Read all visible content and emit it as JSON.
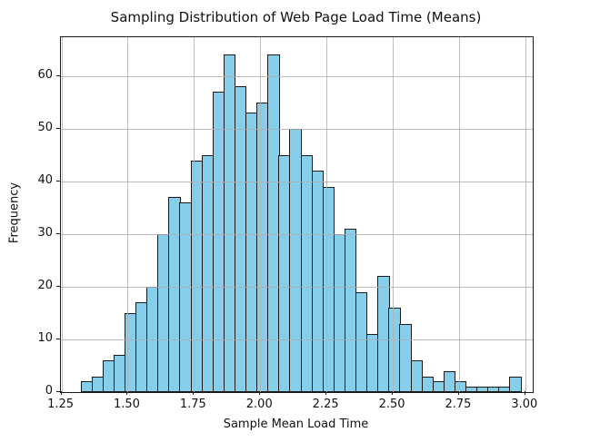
{
  "chart_data": {
    "type": "bar",
    "subtype": "histogram",
    "title": "Sampling Distribution of Web Page Load Time (Means)",
    "xlabel": "Sample Mean Load Time",
    "ylabel": "Frequency",
    "bin_start": 1.322,
    "bin_width": 0.0415,
    "frequencies": [
      2,
      3,
      6,
      7,
      15,
      17,
      20,
      30,
      37,
      36,
      44,
      45,
      57,
      64,
      58,
      53,
      55,
      64,
      45,
      50,
      45,
      42,
      39,
      30,
      31,
      19,
      11,
      22,
      16,
      13,
      6,
      3,
      2,
      4,
      2,
      1,
      1,
      1,
      1,
      3
    ],
    "x_ticks": [
      {
        "value": 1.25,
        "label": "1.25"
      },
      {
        "value": 1.5,
        "label": "1.50"
      },
      {
        "value": 1.75,
        "label": "1.75"
      },
      {
        "value": 2.0,
        "label": "2.00"
      },
      {
        "value": 2.25,
        "label": "2.25"
      },
      {
        "value": 2.5,
        "label": "2.50"
      },
      {
        "value": 2.75,
        "label": "2.75"
      },
      {
        "value": 3.0,
        "label": "3.00"
      }
    ],
    "y_ticks": [
      {
        "value": 0,
        "label": "0"
      },
      {
        "value": 10,
        "label": "10"
      },
      {
        "value": 20,
        "label": "20"
      },
      {
        "value": 30,
        "label": "30"
      },
      {
        "value": 40,
        "label": "40"
      },
      {
        "value": 50,
        "label": "50"
      },
      {
        "value": 60,
        "label": "60"
      }
    ],
    "xlim": [
      1.248,
      3.028
    ],
    "ylim": [
      0,
      67.35
    ],
    "grid": true,
    "legend": null,
    "colors": {
      "bar_fill": "#87CEEB",
      "bar_edge": "#1a1a1a",
      "grid": "#b2b2b2",
      "background": "#ffffff",
      "text": "#111111"
    }
  }
}
